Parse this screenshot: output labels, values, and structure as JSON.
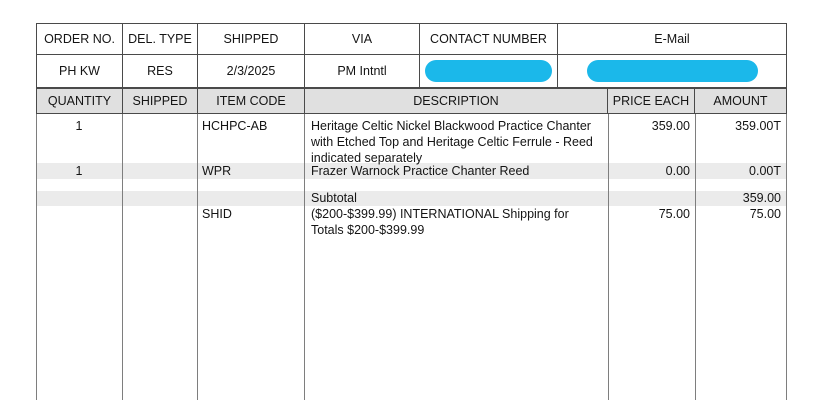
{
  "order_info": {
    "labels": [
      "ORDER NO.",
      "DEL. TYPE",
      "SHIPPED",
      "VIA",
      "CONTACT NUMBER",
      "E-Mail"
    ],
    "values": {
      "order_no": "PH KW",
      "del_type": "RES",
      "shipped": "2/3/2025",
      "via": "PM Intntl"
    }
  },
  "items_table": {
    "headers": [
      "QUANTITY",
      "SHIPPED",
      "ITEM CODE",
      "DESCRIPTION",
      "PRICE EACH",
      "AMOUNT"
    ],
    "rows": [
      {
        "quantity": "1",
        "shipped": "",
        "item_code": "HCHPC-AB",
        "description_lines": [
          "Heritage Celtic Nickel Blackwood Practice Chanter",
          "with Etched Top and Heritage Celtic Ferrule - Reed",
          "indicated separately"
        ],
        "price_each": "359.00",
        "amount": "359.00T"
      },
      {
        "quantity": "1",
        "shipped": "",
        "item_code": "WPR",
        "description_lines": [
          "Frazer Warnock Practice Chanter Reed"
        ],
        "price_each": "0.00",
        "amount": "0.00T"
      },
      {
        "label": "Subtotal",
        "amount": "359.00"
      },
      {
        "item_code": "SHID",
        "description_lines": [
          "($200-$399.99) INTERNATIONAL Shipping for",
          "Totals $200-$399.99"
        ],
        "price_each": "75.00",
        "amount": "75.00"
      }
    ]
  },
  "colors": {
    "redaction_cyan": "#1bb8ea",
    "header_fill": "#e0e0e0",
    "stripe_fill": "#ebebeb",
    "border_dark": "#4a4a4a",
    "body_line_gray": "#7e7e7e"
  }
}
